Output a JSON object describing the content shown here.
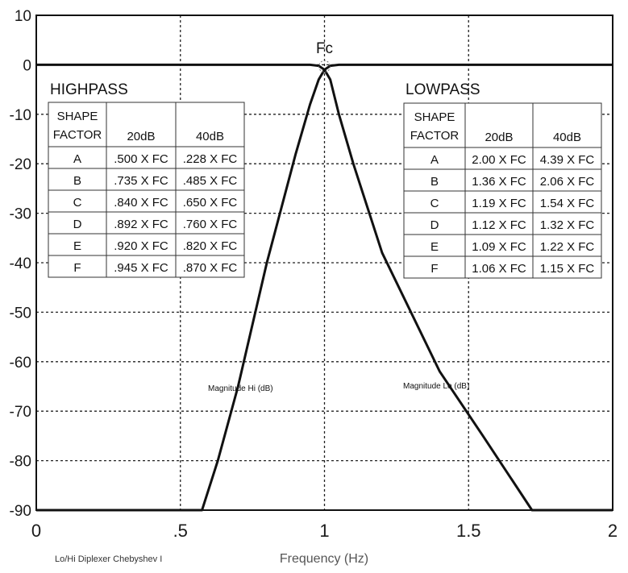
{
  "chart_data": {
    "type": "line",
    "xlabel": "Frequency (Hz)",
    "ylabel": "",
    "xlim": [
      0,
      2
    ],
    "ylim": [
      -90,
      10
    ],
    "x_ticks": [
      0,
      0.5,
      1,
      1.5,
      2
    ],
    "x_tick_labels": [
      "0",
      ".5",
      "1",
      "1.5",
      "2"
    ],
    "y_ticks": [
      10,
      0,
      -10,
      -20,
      -30,
      -40,
      -50,
      -60,
      -70,
      -80,
      -90
    ],
    "y_tick_labels": [
      "10",
      "0",
      "-10",
      "-20",
      "-30",
      "-40",
      "-50",
      "-60",
      "-70",
      "-80",
      "-90"
    ],
    "grid": true,
    "annotation_fc": "Fc",
    "footnote": "Lo/Hi Diplexer Chebyshev I",
    "series": [
      {
        "name": "Magnitude Hi (dB)",
        "x": [
          0,
          0.575,
          0.63,
          0.7,
          0.8,
          0.9,
          0.95,
          0.98,
          1.0,
          1.02,
          1.05,
          1.5,
          2.0
        ],
        "y": [
          -90,
          -90,
          -80,
          -65,
          -40,
          -18,
          -8,
          -3,
          -1,
          -0.2,
          0,
          0,
          0
        ]
      },
      {
        "name": "Magnitude Lo (dB)",
        "x": [
          0,
          0.5,
          0.95,
          0.98,
          1.0,
          1.02,
          1.05,
          1.1,
          1.2,
          1.4,
          1.55,
          1.72,
          2.0
        ],
        "y": [
          0,
          0,
          0,
          -0.2,
          -1,
          -3,
          -10,
          -20,
          -38,
          -62,
          -75,
          -90,
          -90
        ]
      }
    ],
    "curve_label_hi": "Magnitude Hi (dB)",
    "curve_label_lo": "Magnitude Lo (dB)"
  },
  "highpass": {
    "title": "HIGHPASS",
    "header": [
      "SHAPE\nFACTOR",
      "20dB",
      "40dB"
    ],
    "header_shape": "SHAPE",
    "header_factor": "FACTOR",
    "rows": [
      [
        "A",
        ".500 X FC",
        ".228 X FC"
      ],
      [
        "B",
        ".735 X FC",
        ".485 X FC"
      ],
      [
        "C",
        ".840 X FC",
        ".650 X FC"
      ],
      [
        "D",
        ".892 X FC",
        ".760 X FC"
      ],
      [
        "E",
        ".920 X FC",
        ".820 X FC"
      ],
      [
        "F",
        ".945 X FC",
        ".870 X FC"
      ]
    ]
  },
  "lowpass": {
    "title": "LOWPASS",
    "header_shape": "SHAPE",
    "header_factor": "FACTOR",
    "header": [
      "SHAPE\nFACTOR",
      "20dB",
      "40dB"
    ],
    "rows": [
      [
        "A",
        "2.00 X FC",
        "4.39 X FC"
      ],
      [
        "B",
        "1.36 X FC",
        "2.06 X FC"
      ],
      [
        "C",
        "1.19 X FC",
        "1.54 X FC"
      ],
      [
        "D",
        "1.12 X FC",
        "1.32 X FC"
      ],
      [
        "E",
        "1.09 X FC",
        "1.22 X FC"
      ],
      [
        "F",
        "1.06 X FC",
        "1.15 X FC"
      ]
    ]
  }
}
